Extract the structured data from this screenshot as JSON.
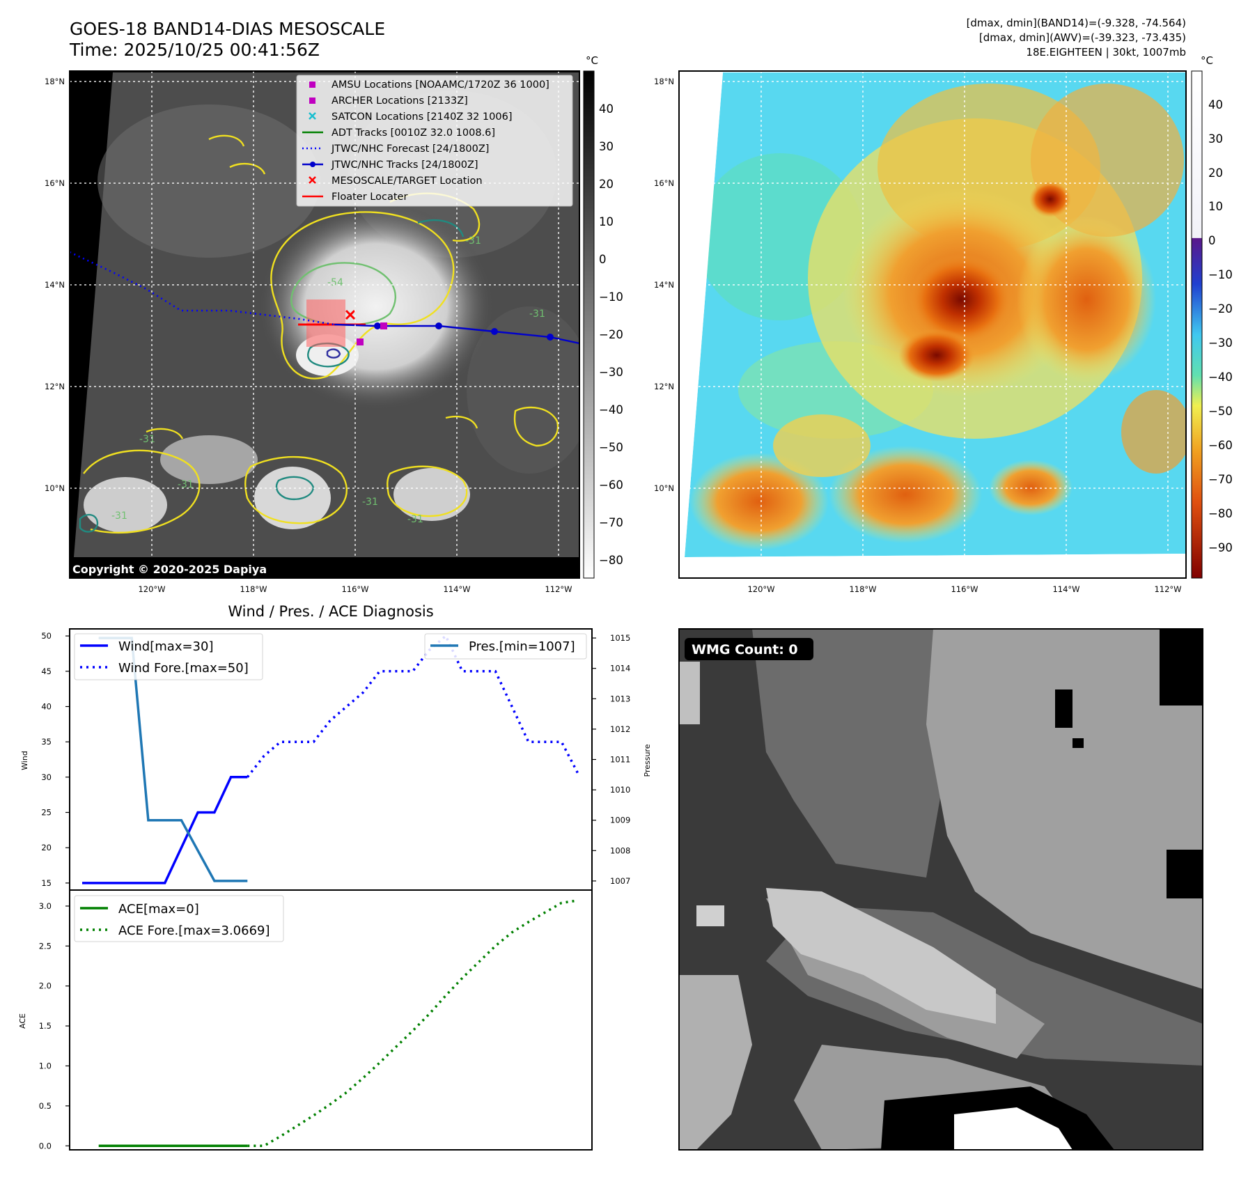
{
  "header": {
    "title_line1": "GOES-18 BAND14-DIAS MESOSCALE",
    "title_line2": "Time: 2025/10/25 00:41:56Z",
    "stats_line1": "[dmax, dmin](BAND14)=(-9.328, -74.564)",
    "stats_line2": "[dmax, dmin](AWV)=(-39.323, -73.435)",
    "stats_line3": "18E.EIGHTEEN | 30kt, 1007mb"
  },
  "ir_map": {
    "lat_labels": [
      "18°N",
      "16°N",
      "14°N",
      "12°N",
      "10°N"
    ],
    "lon_labels": [
      "120°W",
      "118°W",
      "116°W",
      "114°W",
      "112°W"
    ],
    "copyright": "Copyright © 2020-2025 Dapiya",
    "contour_labels": [
      "-54",
      "-31",
      "-31",
      "-31",
      "-31",
      "-31",
      "-31",
      "-31"
    ],
    "legend": [
      {
        "label": "AMSU Locations [NOAAMC/1720Z 36 1000]",
        "marker": "square",
        "color": "#c000c0"
      },
      {
        "label": "ARCHER Locations [2133Z]",
        "marker": "square",
        "color": "#c000c0"
      },
      {
        "label": "SATCON Locations [2140Z 32 1006]",
        "marker": "x",
        "color": "#17becf"
      },
      {
        "label": "ADT Tracks [0010Z 32.0 1008.6]",
        "marker": "line",
        "color": "#008000"
      },
      {
        "label": "JTWC/NHC Forecast [24/1800Z]",
        "marker": "dotted",
        "color": "#0000ff"
      },
      {
        "label": "JTWC/NHC Tracks [24/1800Z]",
        "marker": "line-dot",
        "color": "#0000cc"
      },
      {
        "label": "MESOSCALE/TARGET Location",
        "marker": "x",
        "color": "#ff0000"
      },
      {
        "label": "Floater Locater",
        "marker": "line",
        "color": "#ff0000"
      }
    ],
    "colorbar": {
      "unit": "°C",
      "ticks": [
        "40",
        "30",
        "20",
        "10",
        "0",
        "−10",
        "−20",
        "−30",
        "−40",
        "−50",
        "−60",
        "−70",
        "−80"
      ]
    }
  },
  "awv_map": {
    "lat_labels": [
      "18°N",
      "16°N",
      "14°N",
      "12°N",
      "10°N"
    ],
    "lon_labels": [
      "120°W",
      "118°W",
      "116°W",
      "114°W",
      "112°W"
    ],
    "colorbar": {
      "unit": "°C",
      "ticks": [
        "40",
        "30",
        "20",
        "10",
        "0",
        "−10",
        "−20",
        "−30",
        "−40",
        "−50",
        "−60",
        "−70",
        "−80",
        "−90"
      ]
    }
  },
  "wmg_panel": {
    "badge": "WMG Count: 0"
  },
  "chart_data": [
    {
      "type": "line",
      "title": "Wind / Pres. / ACE Diagnosis",
      "ylabel": "Wind",
      "ylabel_right": "Pressure",
      "ylim": [
        14,
        51
      ],
      "ylim_right": [
        1006.7,
        1015.3
      ],
      "yticks": [
        15,
        20,
        25,
        30,
        35,
        40,
        45,
        50
      ],
      "yticks_right": [
        1007,
        1008,
        1009,
        1010,
        1011,
        1012,
        1013,
        1014,
        1015
      ],
      "x": [
        0,
        1,
        2,
        3,
        4,
        5,
        6,
        7,
        8,
        9,
        10,
        11,
        12,
        13,
        14,
        15,
        16,
        17,
        18,
        19,
        20,
        21,
        22,
        23,
        24,
        25,
        26,
        27,
        28,
        29,
        30
      ],
      "series": [
        {
          "name": "Wind[max=30]",
          "style": "solid",
          "color": "#0000ff",
          "axis": "left",
          "x": [
            0,
            3,
            5,
            6,
            7,
            8,
            9,
            10
          ],
          "values": [
            15,
            15,
            15,
            20,
            25,
            25,
            30,
            30
          ]
        },
        {
          "name": "Wind Fore.[max=50]",
          "style": "dotted",
          "color": "#0000ff",
          "axis": "left",
          "x": [
            10,
            11,
            12,
            13,
            14,
            15,
            16,
            17,
            18,
            19,
            20,
            21,
            22,
            23,
            24,
            25,
            26,
            27,
            28,
            29,
            30
          ],
          "values": [
            30,
            33,
            35,
            35,
            35,
            38,
            40,
            42,
            45,
            45,
            45,
            48,
            50,
            45,
            45,
            45,
            40,
            35,
            35,
            35,
            30.5
          ]
        },
        {
          "name": "Pres.[min=1007]",
          "style": "solid",
          "color": "#1f77b4",
          "axis": "right",
          "x": [
            1,
            2,
            3,
            4,
            5,
            6,
            7,
            8,
            9,
            10
          ],
          "values": [
            1015,
            1015,
            1015,
            1009,
            1009,
            1009,
            1008,
            1007,
            1007,
            1007
          ]
        }
      ]
    },
    {
      "type": "line",
      "ylabel": "ACE",
      "ylim": [
        -0.05,
        3.2
      ],
      "yticks": [
        0.0,
        0.5,
        1.0,
        1.5,
        2.0,
        2.5,
        3.0
      ],
      "ytick_labels": [
        "0.0",
        "0.5",
        "1.0",
        "1.5",
        "2.0",
        "2.5",
        "3.0"
      ],
      "series": [
        {
          "name": "ACE[max=0]",
          "style": "solid",
          "color": "#008000",
          "x": [
            1,
            10
          ],
          "values": [
            0,
            0
          ]
        },
        {
          "name": "ACE Fore.[max=3.0669]",
          "style": "dotted",
          "color": "#008000",
          "x": [
            10,
            11,
            12,
            13,
            14,
            15,
            16,
            17,
            18,
            19,
            20,
            21,
            22,
            23,
            24,
            25,
            26,
            27,
            28,
            29,
            30
          ],
          "values": [
            0,
            0.0,
            0.12,
            0.25,
            0.38,
            0.52,
            0.67,
            0.85,
            1.04,
            1.24,
            1.44,
            1.65,
            1.88,
            2.1,
            2.3,
            2.5,
            2.67,
            2.8,
            2.92,
            3.04,
            3.07
          ]
        }
      ]
    }
  ]
}
